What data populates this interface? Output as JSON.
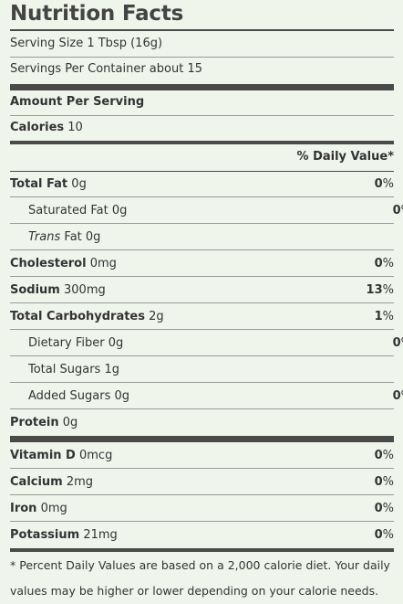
{
  "label": {
    "title": "Nutrition Facts",
    "serving_size": "Serving Size 1 Tbsp (16g)",
    "servings_per_container": "Servings Per Container about 15",
    "amount_per_serving": "Amount Per Serving",
    "calories_label": "Calories",
    "calories_value": "10",
    "daily_value_header": "% Daily Value*",
    "nutrients": [
      {
        "name": "Total Fat",
        "amount": "0g",
        "dv_num": "0",
        "dv_sym": "%"
      },
      {
        "name": "Saturated Fat",
        "amount": "0g",
        "dv_num": "0",
        "dv_sym": "%"
      },
      {
        "name": "Trans",
        "name_suffix": "Fat",
        "amount": "0g",
        "dv_num": "",
        "dv_sym": ""
      },
      {
        "name": "Cholesterol",
        "amount": "0mg",
        "dv_num": "0",
        "dv_sym": "%"
      },
      {
        "name": "Sodium",
        "amount": "300mg",
        "dv_num": "13",
        "dv_sym": "%"
      },
      {
        "name": "Total Carbohydrates",
        "amount": "2g",
        "dv_num": "1",
        "dv_sym": "%"
      },
      {
        "name": "Dietary Fiber",
        "amount": "0g",
        "dv_num": "0",
        "dv_sym": "%"
      },
      {
        "name": "Total Sugars",
        "amount": "1g",
        "dv_num": "",
        "dv_sym": ""
      },
      {
        "name": "Added Sugars",
        "amount": "0g",
        "dv_num": "0",
        "dv_sym": "%"
      },
      {
        "name": "Protein",
        "amount": "0g",
        "dv_num": "",
        "dv_sym": ""
      }
    ],
    "vitamins": [
      {
        "name": "Vitamin D",
        "amount": "0mcg",
        "dv_num": "0",
        "dv_sym": "%"
      },
      {
        "name": "Calcium",
        "amount": "2mg",
        "dv_num": "0",
        "dv_sym": "%"
      },
      {
        "name": "Iron",
        "amount": "0mg",
        "dv_num": "0",
        "dv_sym": "%"
      },
      {
        "name": "Potassium",
        "amount": "21mg",
        "dv_num": "0",
        "dv_sym": "%"
      }
    ],
    "footnote_line1": "* Percent Daily Values are based on a 2,000 calorie diet. Your daily",
    "footnote_line2": "values may be higher or lower depending on your calorie needs."
  },
  "colors": {
    "background": "#f0f5ec",
    "rule": "#4a4a48",
    "text": "#333333"
  }
}
